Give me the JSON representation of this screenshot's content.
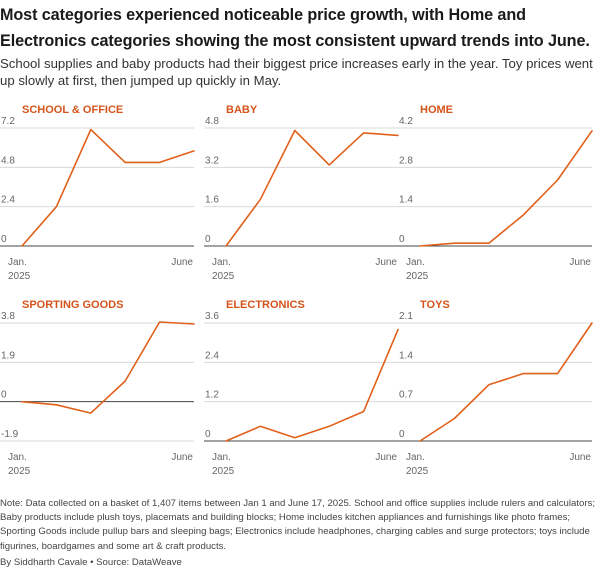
{
  "title": "Most categories experienced noticeable price growth, with Home and Electronics categories showing the most consistent upward trends into June.",
  "subtitle": "School supplies and baby products had their biggest price increases early in the year. Toy prices went up slowly at first, then jumped up quickly in May.",
  "note": "Note: Data collected on a basket of 1,407 items between Jan 1 and June 17, 2025. School and office supplies include rulers and calculators; Baby products include plush toys, placemats and building blocks; Home includes kitchen appliances and furnishings like photo frames; Sporting Goods include pullup bars and sleeping bags; Electronics include headphones, charging cables and surge protectors; toys include figurines, boardgames and some art & craft products.",
  "byline": "By Siddharth Cavale • Source: DataWeave",
  "colors": {
    "line": "#e0601a",
    "title": "#d4541a",
    "grid": "#d9d9d9",
    "axis": "#444444",
    "tick": "#666666"
  },
  "chart_data": [
    {
      "type": "line",
      "title": "SCHOOL & OFFICE",
      "x_start_label": [
        "Jan.",
        "2025"
      ],
      "x_end_label": "June",
      "x": [
        1,
        2,
        3,
        4,
        5,
        6
      ],
      "y": [
        0,
        2.4,
        7.1,
        5.1,
        5.1,
        5.8
      ],
      "yticks": [
        0,
        2.4,
        4.8,
        7.2
      ],
      "ytick_labels": [
        "0",
        "2.4",
        "4.8",
        "7.2"
      ],
      "ylim": [
        0,
        7.2
      ]
    },
    {
      "type": "line",
      "title": "BABY",
      "x_start_label": [
        "Jan.",
        "2025"
      ],
      "x_end_label": "June",
      "x": [
        1,
        2,
        3,
        4,
        5,
        6
      ],
      "y": [
        0,
        1.9,
        4.7,
        3.3,
        4.6,
        4.5
      ],
      "yticks": [
        0,
        1.6,
        3.2,
        4.8
      ],
      "ytick_labels": [
        "0",
        "1.6",
        "3.2",
        "4.8"
      ],
      "ylim": [
        0,
        4.8
      ]
    },
    {
      "type": "line",
      "title": "HOME",
      "x_start_label": [
        "Jan.",
        "2025"
      ],
      "x_end_label": "June",
      "x": [
        1,
        2,
        3,
        4,
        5,
        6
      ],
      "y": [
        0,
        0.1,
        0.1,
        1.1,
        2.35,
        4.1
      ],
      "yticks": [
        0,
        1.4,
        2.8,
        4.2
      ],
      "ytick_labels": [
        "0",
        "1.4",
        "2.8",
        "4.2"
      ],
      "ylim": [
        0,
        4.2
      ]
    },
    {
      "type": "line",
      "title": "SPORTING GOODS",
      "x_start_label": [
        "Jan.",
        "2025"
      ],
      "x_end_label": "June",
      "x": [
        1,
        2,
        3,
        4,
        5,
        6
      ],
      "y": [
        0,
        -0.15,
        -0.55,
        1.0,
        3.85,
        3.75
      ],
      "yticks": [
        -1.9,
        0,
        1.9,
        3.8
      ],
      "ytick_labels": [
        "-1.9",
        "0",
        "1.9",
        "3.8"
      ],
      "ylim": [
        -1.9,
        3.8
      ]
    },
    {
      "type": "line",
      "title": "ELECTRONICS",
      "x_start_label": [
        "Jan.",
        "2025"
      ],
      "x_end_label": "June",
      "x": [
        1,
        2,
        3,
        4,
        5,
        6
      ],
      "y": [
        0,
        0.45,
        0.1,
        0.45,
        0.9,
        3.4
      ],
      "yticks": [
        0,
        1.2,
        2.4,
        3.6
      ],
      "ytick_labels": [
        "0",
        "1.2",
        "2.4",
        "3.6"
      ],
      "ylim": [
        0,
        3.6
      ]
    },
    {
      "type": "line",
      "title": "TOYS",
      "x_start_label": [
        "Jan.",
        "2025"
      ],
      "x_end_label": "June",
      "x": [
        1,
        2,
        3,
        4,
        5,
        6
      ],
      "y": [
        0,
        0.4,
        1.0,
        1.2,
        1.2,
        2.1
      ],
      "yticks": [
        0,
        0.7,
        1.4,
        2.1
      ],
      "ytick_labels": [
        "0",
        "0.7",
        "1.4",
        "2.1"
      ],
      "ylim": [
        0,
        2.1
      ]
    }
  ]
}
